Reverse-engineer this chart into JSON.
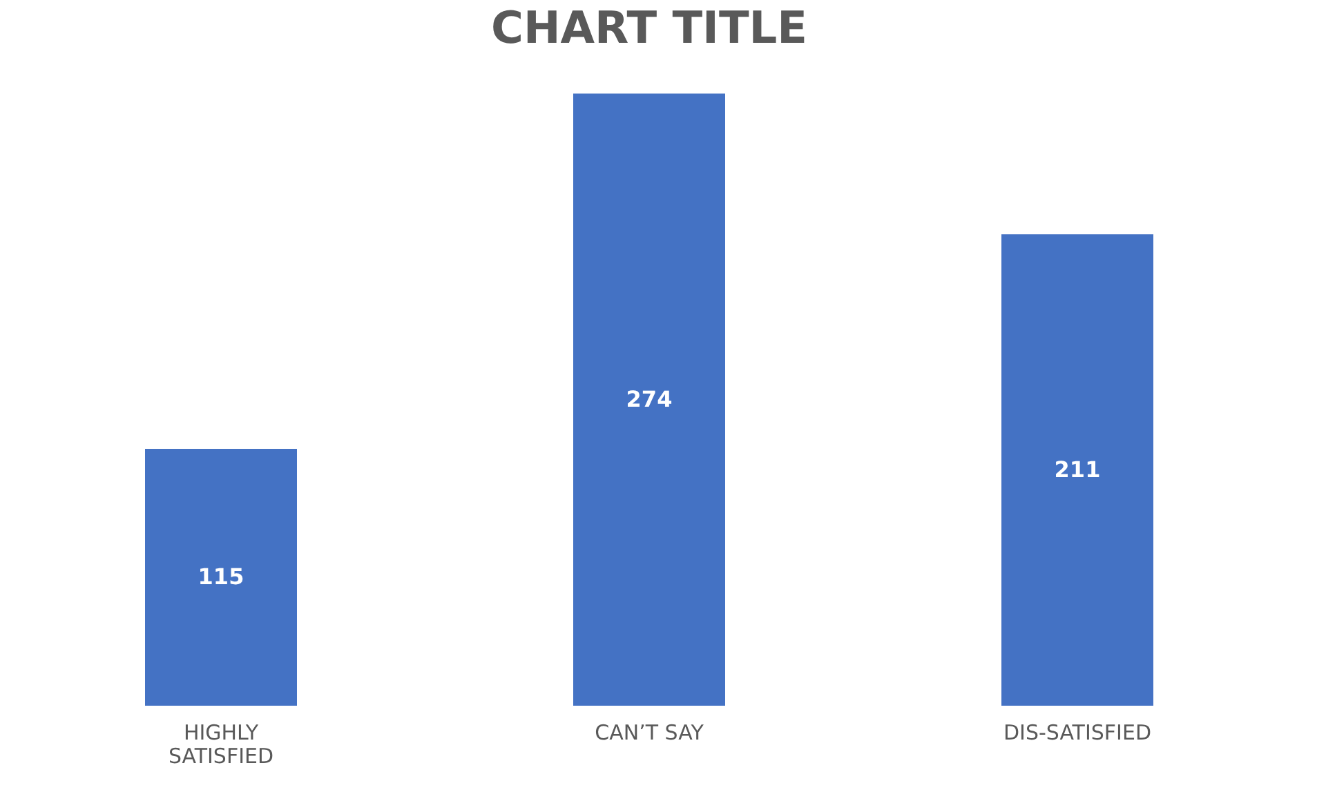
{
  "chart_data": {
    "type": "bar",
    "title": "CHART TITLE",
    "categories": [
      "HIGHLY SATISFIED",
      "CAN’T SAY",
      "DIS-SATISFIED"
    ],
    "values": [
      115,
      274,
      211
    ],
    "color": "#4472c4",
    "data_labels": true,
    "grid": false
  }
}
